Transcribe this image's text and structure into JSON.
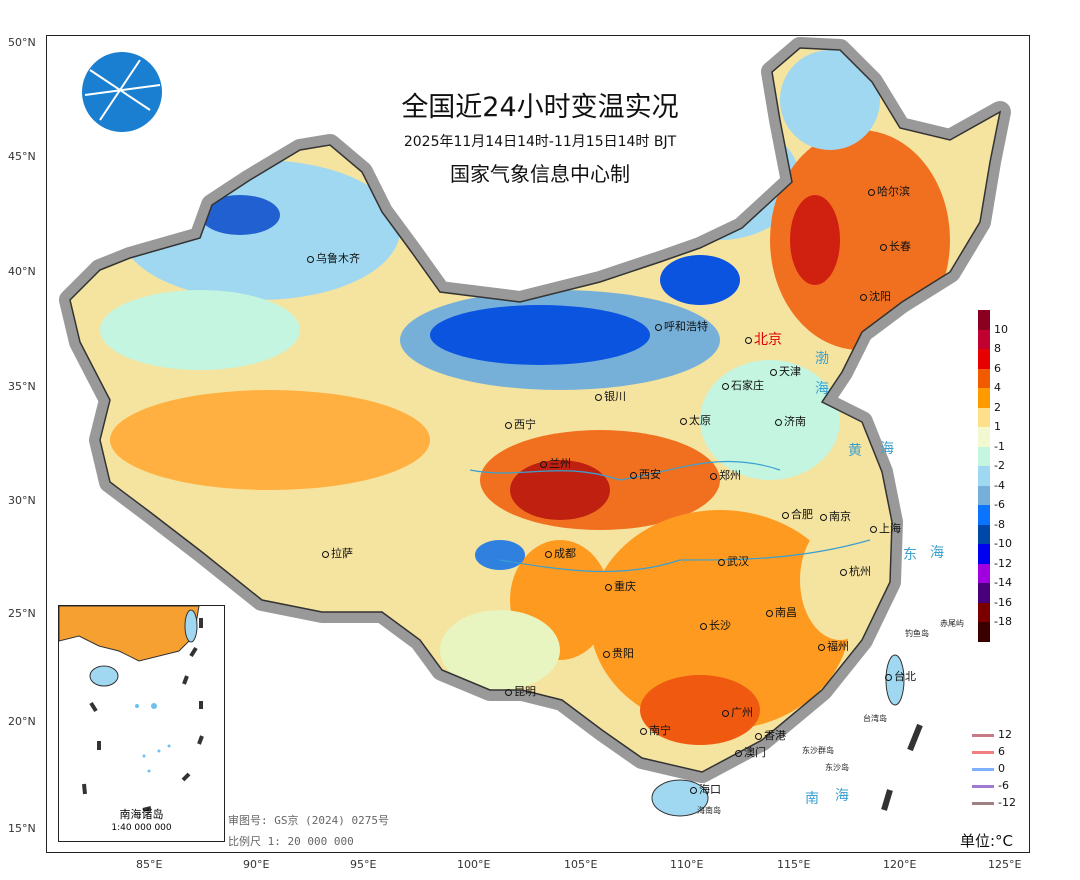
{
  "title": "全国近24小时变温实况",
  "subtitle": "2025年11月14日14时-11月15日14时 BJT",
  "issuer": "国家气象信息中心制",
  "lat_ticks": [
    "50°N",
    "45°N",
    "40°N",
    "35°N",
    "30°N",
    "25°N",
    "20°N",
    "15°N"
  ],
  "lon_ticks": [
    "85°E",
    "90°E",
    "95°E",
    "100°E",
    "105°E",
    "110°E",
    "115°E",
    "120°E",
    "125°E"
  ],
  "colorbar": {
    "labels": [
      "10",
      "8",
      "6",
      "4",
      "2",
      "1",
      "-1",
      "-2",
      "-4",
      "-6",
      "-8",
      "-10",
      "-12",
      "-14",
      "-16",
      "-18"
    ],
    "colors": [
      "#8b0021",
      "#c0002e",
      "#e60000",
      "#f05a00",
      "#ff9a00",
      "#ffe08a",
      "#f2f9d0",
      "#c3f5e0",
      "#9fd8f0",
      "#76b0d8",
      "#0a74ff",
      "#0048a8",
      "#0000f0",
      "#a000e0",
      "#48007a",
      "#7a0000",
      "#3a0000"
    ]
  },
  "line_legend": [
    {
      "label": "12",
      "color": "#c67a88"
    },
    {
      "label": "6",
      "color": "#f08080"
    },
    {
      "label": "0",
      "color": "#7fb0ff"
    },
    {
      "label": "-6",
      "color": "#a07ad0"
    },
    {
      "label": "-12",
      "color": "#a08080"
    }
  ],
  "unit": "单位:°C",
  "map_review_no": "审图号: GS京 (2024) 0275号",
  "scale": "比例尺 1: 20 000 000",
  "inset": {
    "title": "南海诸岛",
    "scale": "1:40 000 000"
  },
  "cities": [
    "乌鲁木齐",
    "哈尔滨",
    "长春",
    "沈阳",
    "呼和浩特",
    "北京",
    "天津",
    "石家庄",
    "银川",
    "太原",
    "济南",
    "西宁",
    "兰州",
    "西安",
    "郑州",
    "合肥",
    "南京",
    "上海",
    "拉萨",
    "成都",
    "武汉",
    "杭州",
    "重庆",
    "南昌",
    "长沙",
    "福州",
    "台北",
    "贵阳",
    "昆明",
    "南宁",
    "广州",
    "香港",
    "澳门",
    "海口"
  ],
  "places": [
    "钓鱼岛",
    "赤尾屿",
    "台湾岛",
    "东沙群岛",
    "东沙岛",
    "海南岛"
  ],
  "seas": [
    "渤",
    "海",
    "黄",
    "海",
    "东",
    "海",
    "南",
    "海"
  ]
}
